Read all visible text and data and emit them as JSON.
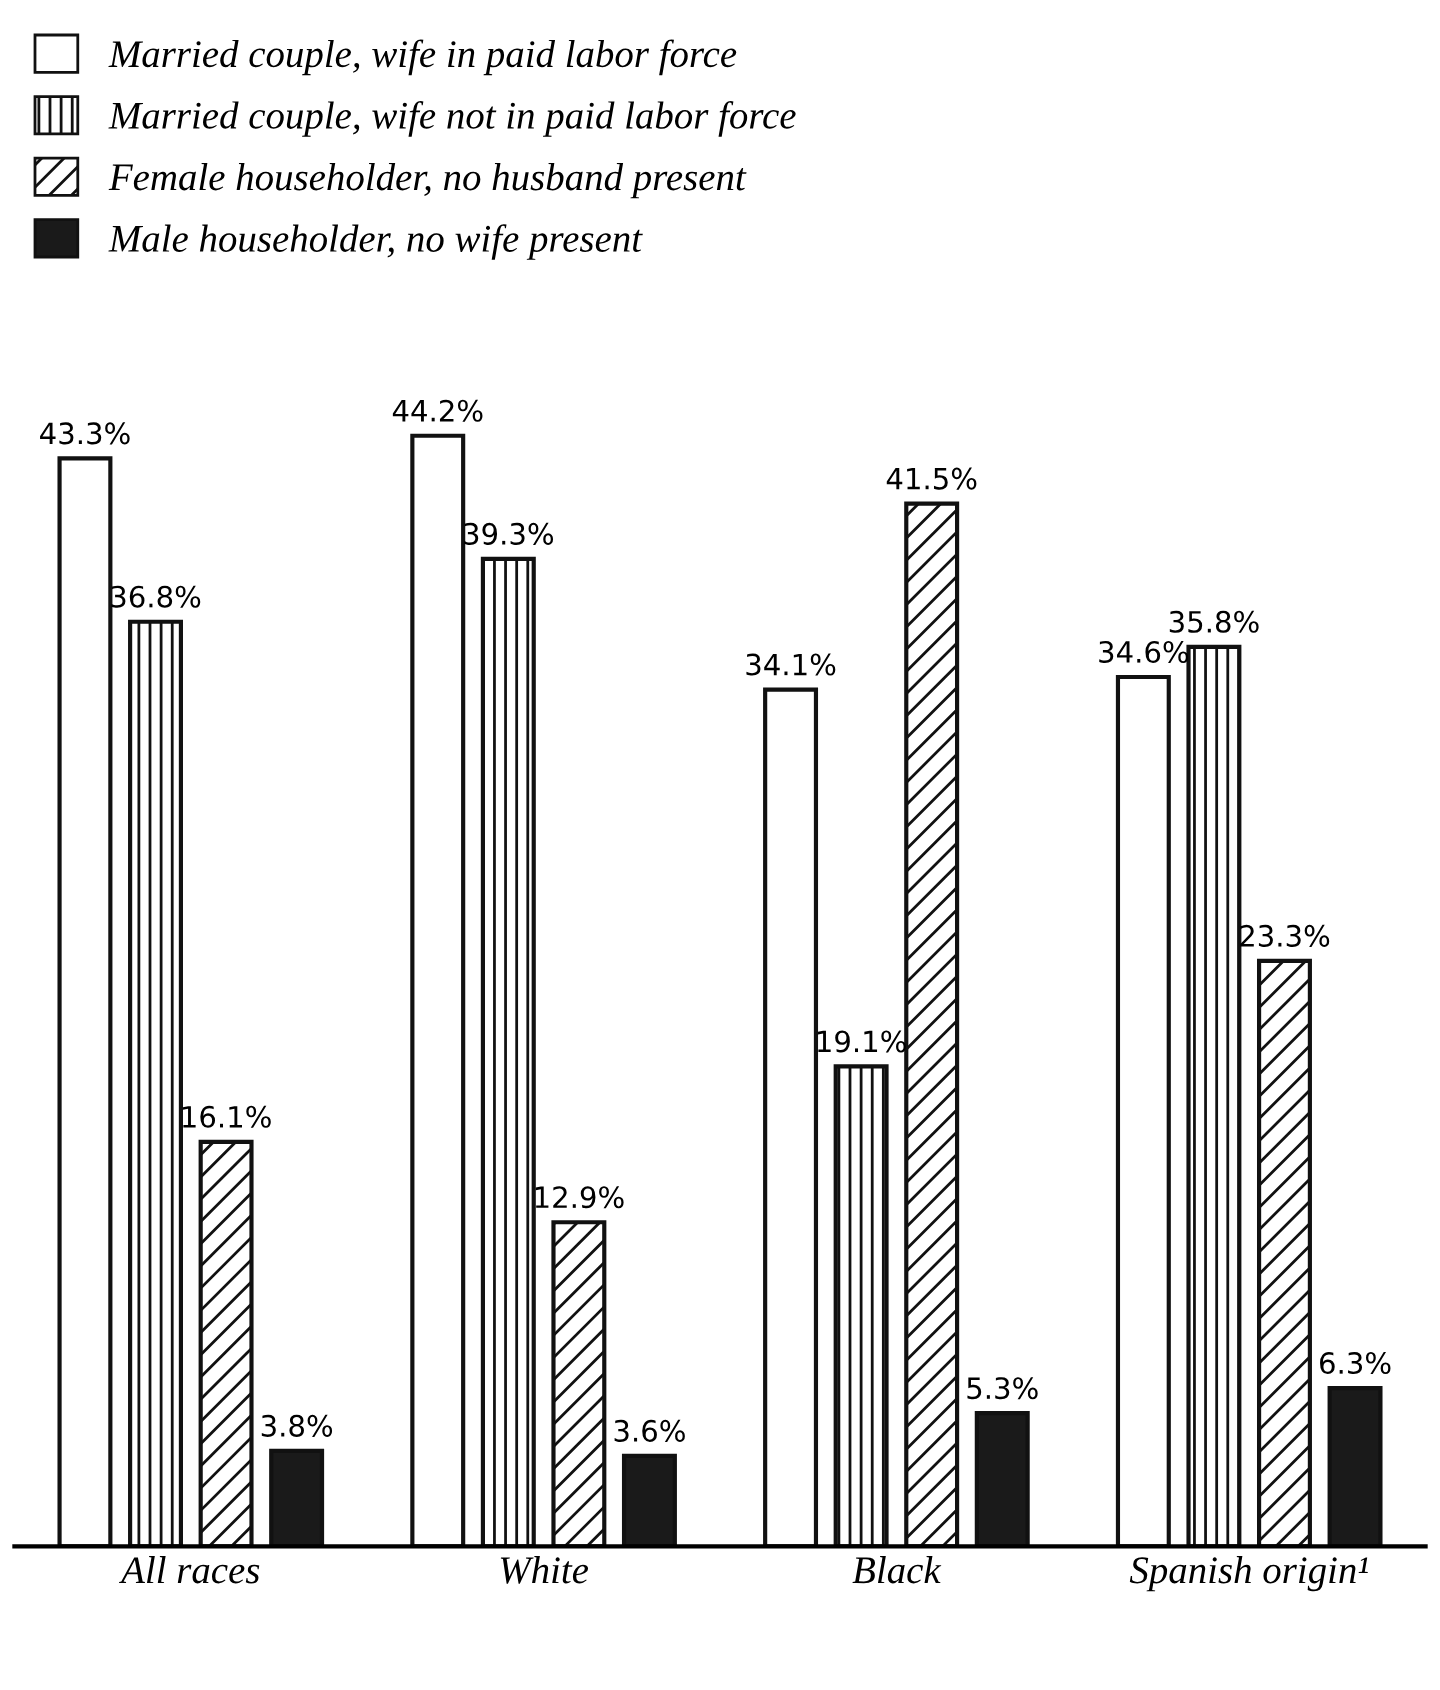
{
  "chart_data": {
    "type": "bar",
    "categories": [
      "All races",
      "White",
      "Black",
      "Spanish origin¹"
    ],
    "series": [
      {
        "name": "Married couple, wife in paid labor force",
        "color": "#ffffff",
        "values": [
          43.3,
          44.2,
          34.1,
          34.6
        ],
        "value_labels": [
          "43.3%",
          "44.2%",
          "34.1%",
          "34.6%"
        ]
      },
      {
        "name": "Married couple, wife not in paid labor force",
        "color": "#111111",
        "values": [
          36.8,
          39.3,
          19.1,
          35.8
        ],
        "value_labels": [
          "36.8%",
          "39.3%",
          "19.1%",
          "35.8%"
        ]
      },
      {
        "name": "Female householder, no husband present",
        "color": "#111111",
        "values": [
          16.1,
          12.9,
          41.5,
          23.3
        ],
        "value_labels": [
          "16.1%",
          "12.9%",
          "41.5%",
          "23.3%"
        ]
      },
      {
        "name": "Male householder, no wife present",
        "color": "#1a1a1a",
        "values": [
          3.8,
          3.6,
          5.3,
          6.3
        ],
        "value_labels": [
          "3.8%",
          "3.6%",
          "5.3%",
          "6.3%"
        ]
      }
    ],
    "legend": "top left",
    "grid": false
  }
}
